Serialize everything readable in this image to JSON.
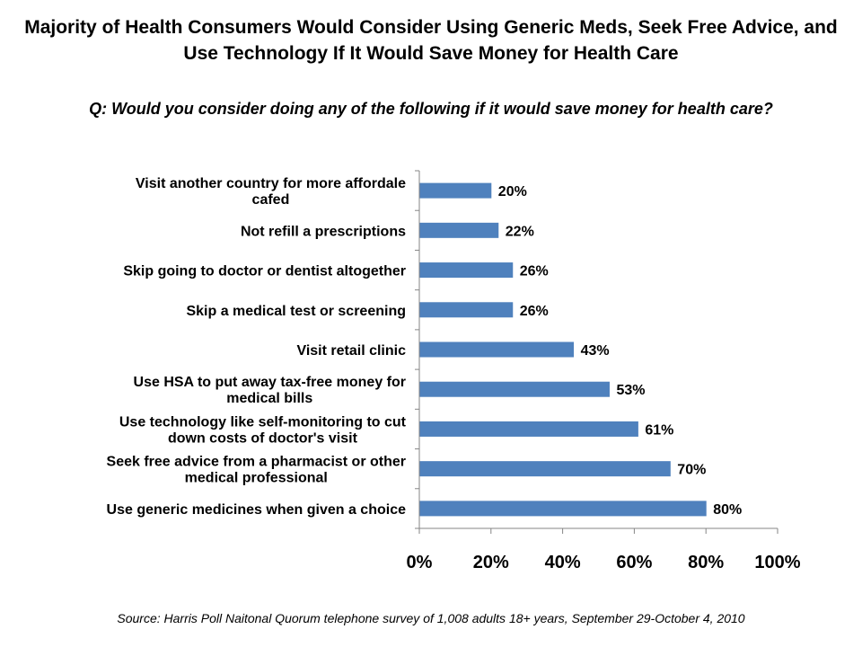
{
  "chart_data": {
    "type": "bar",
    "orientation": "horizontal",
    "title": "Majority of Health Consumers Would Consider Using Generic Meds, Seek Free Advice, and Use Technology If It Would Save Money for Health Care",
    "subtitle": "Q: Would you consider doing any of the following if it would save money for health care?",
    "source": "Source: Harris Poll Naitonal Quorum telephone survey of 1,008 adults 18+ years, September 29-October 4, 2010",
    "categories": [
      [
        "Visit another country for more affordale",
        "cafed"
      ],
      [
        "Not refill a prescriptions"
      ],
      [
        "Skip going to doctor or dentist altogether"
      ],
      [
        "Skip a medical test or screening"
      ],
      [
        "Visit retail clinic"
      ],
      [
        "Use HSA to put away tax-free money for",
        "medical bills"
      ],
      [
        "Use technology like self-monitoring to cut",
        "down costs of doctor's visit"
      ],
      [
        "Seek free advice from a pharmacist or other",
        "medical professional"
      ],
      [
        "Use generic medicines when given a choice"
      ]
    ],
    "values": [
      20,
      22,
      26,
      26,
      43,
      53,
      61,
      70,
      80
    ],
    "value_labels": [
      "20%",
      "22%",
      "26%",
      "26%",
      "43%",
      "53%",
      "61%",
      "70%",
      "80%"
    ],
    "xlim": [
      0,
      100
    ],
    "xticks": [
      0,
      20,
      40,
      60,
      80,
      100
    ],
    "xtick_labels": [
      "0%",
      "20%",
      "40%",
      "60%",
      "80%",
      "100%"
    ],
    "xlabel": "",
    "ylabel": "",
    "grid": false,
    "legend": "none",
    "bar_color": "#4F81BD"
  }
}
